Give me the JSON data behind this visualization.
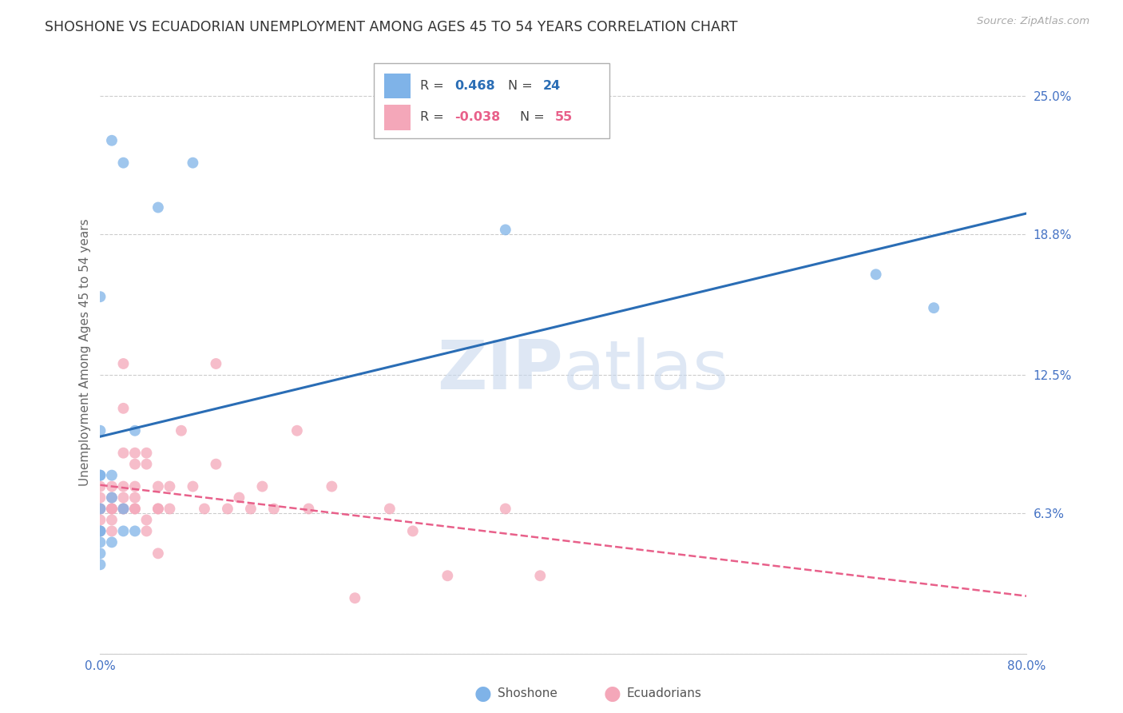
{
  "title": "SHOSHONE VS ECUADORIAN UNEMPLOYMENT AMONG AGES 45 TO 54 YEARS CORRELATION CHART",
  "source": "Source: ZipAtlas.com",
  "ylabel": "Unemployment Among Ages 45 to 54 years",
  "xlim": [
    0.0,
    0.8
  ],
  "ylim": [
    0.0,
    0.27
  ],
  "ytick_values": [
    0.0,
    0.063,
    0.125,
    0.188,
    0.25
  ],
  "ytick_labels": [
    "",
    "6.3%",
    "12.5%",
    "18.8%",
    "25.0%"
  ],
  "xtick_values": [
    0.0,
    0.1,
    0.2,
    0.3,
    0.4,
    0.5,
    0.6,
    0.7,
    0.8
  ],
  "xtick_labels": [
    "0.0%",
    "",
    "",
    "",
    "",
    "",
    "",
    "",
    "80.0%"
  ],
  "grid_color": "#cccccc",
  "background_color": "#ffffff",
  "shoshone_color": "#7fb3e8",
  "ecuadorian_color": "#f4a7b9",
  "shoshone_line_color": "#2a6db5",
  "ecuadorian_line_color": "#e8608a",
  "shoshone_x": [
    0.01,
    0.02,
    0.08,
    0.0,
    0.0,
    0.03,
    0.0,
    0.0,
    0.01,
    0.01,
    0.0,
    0.02,
    0.02,
    0.03,
    0.0,
    0.0,
    0.01,
    0.0,
    0.0,
    0.0,
    0.05,
    0.35,
    0.67,
    0.72
  ],
  "shoshone_y": [
    0.23,
    0.22,
    0.22,
    0.16,
    0.1,
    0.1,
    0.08,
    0.08,
    0.08,
    0.07,
    0.065,
    0.065,
    0.055,
    0.055,
    0.055,
    0.055,
    0.05,
    0.05,
    0.045,
    0.04,
    0.2,
    0.19,
    0.17,
    0.155
  ],
  "ecuadorian_x": [
    0.0,
    0.0,
    0.0,
    0.0,
    0.0,
    0.0,
    0.01,
    0.01,
    0.01,
    0.01,
    0.01,
    0.01,
    0.01,
    0.02,
    0.02,
    0.02,
    0.02,
    0.02,
    0.02,
    0.02,
    0.03,
    0.03,
    0.03,
    0.03,
    0.03,
    0.03,
    0.04,
    0.04,
    0.04,
    0.04,
    0.05,
    0.05,
    0.05,
    0.05,
    0.06,
    0.06,
    0.07,
    0.08,
    0.09,
    0.1,
    0.1,
    0.11,
    0.12,
    0.13,
    0.14,
    0.15,
    0.17,
    0.18,
    0.2,
    0.22,
    0.25,
    0.27,
    0.3,
    0.35,
    0.38
  ],
  "ecuadorian_y": [
    0.075,
    0.07,
    0.065,
    0.065,
    0.06,
    0.055,
    0.075,
    0.07,
    0.065,
    0.065,
    0.065,
    0.06,
    0.055,
    0.13,
    0.11,
    0.09,
    0.075,
    0.07,
    0.065,
    0.065,
    0.09,
    0.085,
    0.075,
    0.07,
    0.065,
    0.065,
    0.09,
    0.085,
    0.06,
    0.055,
    0.075,
    0.065,
    0.065,
    0.045,
    0.075,
    0.065,
    0.1,
    0.075,
    0.065,
    0.13,
    0.085,
    0.065,
    0.07,
    0.065,
    0.075,
    0.065,
    0.1,
    0.065,
    0.075,
    0.025,
    0.065,
    0.055,
    0.035,
    0.065,
    0.035
  ],
  "marker_size": 100,
  "marker_alpha": 0.75
}
